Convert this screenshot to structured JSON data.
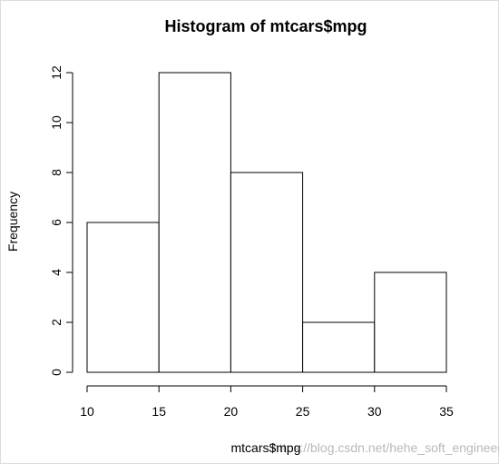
{
  "chart_data": {
    "type": "bar",
    "title": "Histogram of mtcars$mpg",
    "xlabel": "mtcars$mpg",
    "ylabel": "Frequency",
    "bins": [
      {
        "from": 10,
        "to": 15,
        "count": 6
      },
      {
        "from": 15,
        "to": 20,
        "count": 12
      },
      {
        "from": 20,
        "to": 25,
        "count": 8
      },
      {
        "from": 25,
        "to": 30,
        "count": 2
      },
      {
        "from": 30,
        "to": 35,
        "count": 4
      }
    ],
    "xlim": [
      10,
      35
    ],
    "ylim": [
      0,
      12
    ],
    "x_ticks": [
      "10",
      "15",
      "20",
      "25",
      "30",
      "35"
    ],
    "y_ticks": [
      "0",
      "2",
      "4",
      "6",
      "8",
      "10",
      "12"
    ],
    "grid": false,
    "legend": "none"
  },
  "watermark": "https://blog.csdn.net/hehe_soft_engineer"
}
